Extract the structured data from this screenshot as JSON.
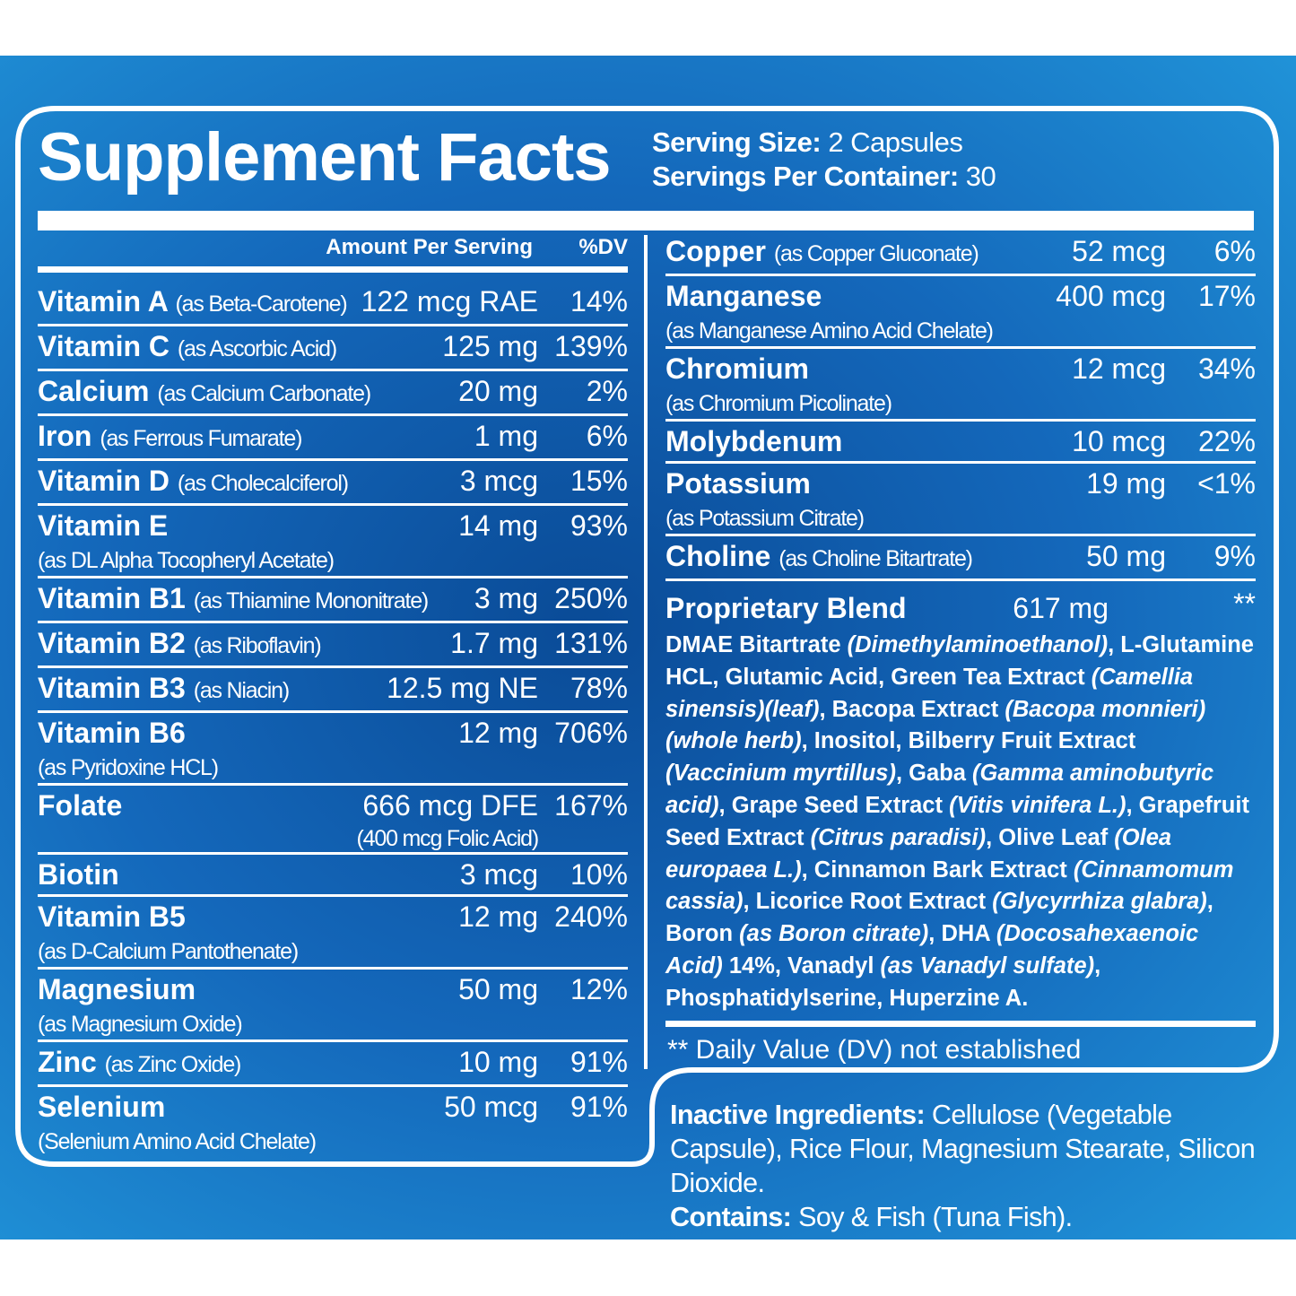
{
  "title": "Supplement Facts",
  "serving_size": {
    "label": "Serving Size:",
    "value": "2 Capsules"
  },
  "servings_per_container": {
    "label": "Servings Per Container:",
    "value": "30"
  },
  "header": {
    "amount": "Amount Per Serving",
    "dv": "%DV"
  },
  "left_rows": [
    {
      "name": "Vitamin A",
      "source": "(as Beta-Carotene)",
      "amount": "122 mcg RAE",
      "dv": "14%"
    },
    {
      "name": "Vitamin C",
      "source": "(as Ascorbic Acid)",
      "amount": "125 mg",
      "dv": "139%"
    },
    {
      "name": "Calcium",
      "source": "(as Calcium Carbonate)",
      "amount": "20 mg",
      "dv": "2%"
    },
    {
      "name": "Iron",
      "source": "(as Ferrous Fumarate)",
      "amount": "1 mg",
      "dv": "6%"
    },
    {
      "name": "Vitamin D",
      "source": "(as Cholecalciferol)",
      "amount": "3 mcg",
      "dv": "15%"
    },
    {
      "name": "Vitamin E",
      "detail": "(as DL Alpha Tocopheryl Acetate)",
      "amount": "14 mg",
      "dv": "93%"
    },
    {
      "name": "Vitamin B1",
      "source": "(as Thiamine Mononitrate)",
      "amount": "3 mg",
      "dv": "250%"
    },
    {
      "name": "Vitamin B2",
      "source": "(as Riboflavin)",
      "amount": "1.7 mg",
      "dv": "131%"
    },
    {
      "name": "Vitamin B3",
      "source": "(as Niacin)",
      "amount": "12.5 mg NE",
      "dv": "78%"
    },
    {
      "name": "Vitamin B6",
      "detail": "(as Pyridoxine HCL)",
      "amount": "12 mg",
      "dv": "706%"
    },
    {
      "name": "Folate",
      "amount": "666 mcg DFE",
      "amount_note": "(400 mcg Folic Acid)",
      "dv": "167%"
    },
    {
      "name": "Biotin",
      "amount": "3 mcg",
      "dv": "10%"
    },
    {
      "name": "Vitamin B5",
      "detail": "(as D-Calcium Pantothenate)",
      "amount": "12 mg",
      "dv": "240%"
    },
    {
      "name": "Magnesium",
      "detail": "(as Magnesium Oxide)",
      "amount": "50 mg",
      "dv": "12%"
    },
    {
      "name": "Zinc",
      "source": "(as Zinc Oxide)",
      "amount": "10 mg",
      "dv": "91%"
    },
    {
      "name": "Selenium",
      "detail": "(Selenium Amino Acid Chelate)",
      "amount": "50 mcg",
      "dv": "91%"
    }
  ],
  "right_rows": [
    {
      "name": "Copper",
      "source": "(as Copper Gluconate)",
      "amount": "52 mcg",
      "dv": "6%"
    },
    {
      "name": "Manganese",
      "detail": "(as Manganese Amino Acid Chelate)",
      "amount": "400 mcg",
      "dv": "17%"
    },
    {
      "name": "Chromium",
      "detail": "(as Chromium Picolinate)",
      "amount": "12 mcg",
      "dv": "34%"
    },
    {
      "name": "Molybdenum",
      "amount": "10 mcg",
      "dv": "22%"
    },
    {
      "name": "Potassium",
      "detail": "(as Potassium Citrate)",
      "amount": "19 mg",
      "dv": "<1%"
    },
    {
      "name": "Choline",
      "source": "(as Choline Bitartrate)",
      "amount": "50 mg",
      "dv": "9%"
    }
  ],
  "blend": {
    "name": "Proprietary Blend",
    "amount": "617 mg",
    "dv": "**",
    "ingredients": [
      {
        "text": "DMAE Bitartrate "
      },
      {
        "italic": "(Dimethylaminoethanol)"
      },
      {
        "text": ", L-Glutamine HCL, Glutamic Acid, Green Tea Extract "
      },
      {
        "italic": "(Camellia sinensis)(leaf)"
      },
      {
        "text": ", Bacopa Extract "
      },
      {
        "italic": "(Bacopa monnieri)(whole herb)"
      },
      {
        "text": ", Inositol, Bilberry Fruit Extract "
      },
      {
        "italic": "(Vaccinium myrtillus)"
      },
      {
        "text": ", Gaba "
      },
      {
        "italic": "(Gamma aminobutyric acid)"
      },
      {
        "text": ", Grape Seed Extract "
      },
      {
        "italic": "(Vitis vinifera L.)"
      },
      {
        "text": ", Grapefruit Seed Extract "
      },
      {
        "italic": "(Citrus paradisi)"
      },
      {
        "text": ", Olive Leaf "
      },
      {
        "italic": "(Olea europaea L.)"
      },
      {
        "text": ", Cinnamon Bark Extract "
      },
      {
        "italic": "(Cinnamomum cassia)"
      },
      {
        "text": ", Licorice Root Extract "
      },
      {
        "italic": "(Glycyrrhiza glabra)"
      },
      {
        "text": ", Boron "
      },
      {
        "italic": "(as Boron citrate)"
      },
      {
        "text": ", DHA "
      },
      {
        "italic": "(Docosahexaenoic Acid)"
      },
      {
        "text": " 14%, Vanadyl "
      },
      {
        "italic": "(as Vanadyl sulfate)"
      },
      {
        "text": ", Phosphatidylserine, Huperzine A."
      }
    ]
  },
  "footnote": "** Daily Value (DV) not established",
  "inactive": {
    "label": "Inactive Ingredients:",
    "text": "Cellulose (Vegetable Capsule), Rice Flour, Magnesium Stearate, Silicon Dioxide."
  },
  "contains": {
    "label": "Contains:",
    "text": "Soy & Fish (Tuna Fish)."
  }
}
